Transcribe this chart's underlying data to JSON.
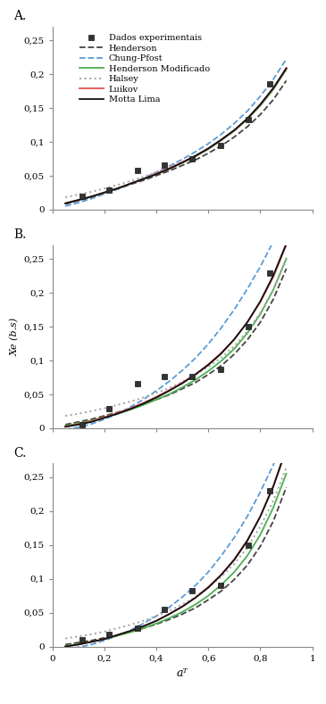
{
  "panels": [
    "A.",
    "B.",
    "C."
  ],
  "ylabel": "Xe (b.s)",
  "xlabel": "aᵀ",
  "ylim": [
    0,
    0.27
  ],
  "xlim": [
    0,
    1.0
  ],
  "yticks": [
    0,
    0.05,
    0.1,
    0.15,
    0.2,
    0.25
  ],
  "xticks": [
    0,
    0.2,
    0.4,
    0.6,
    0.8,
    1.0
  ],
  "exp_data": [
    {
      "x": [
        0.113,
        0.218,
        0.328,
        0.432,
        0.538,
        0.648,
        0.753,
        0.837
      ],
      "y": [
        0.02,
        0.029,
        0.057,
        0.066,
        0.075,
        0.095,
        0.132,
        0.185
      ]
    },
    {
      "x": [
        0.113,
        0.218,
        0.328,
        0.432,
        0.538,
        0.648,
        0.753,
        0.837
      ],
      "y": [
        0.005,
        0.028,
        0.066,
        0.076,
        0.076,
        0.087,
        0.15,
        0.228
      ]
    },
    {
      "x": [
        0.113,
        0.218,
        0.328,
        0.432,
        0.538,
        0.648,
        0.753,
        0.837
      ],
      "y": [
        0.01,
        0.018,
        0.027,
        0.055,
        0.082,
        0.09,
        0.15,
        0.23
      ]
    }
  ],
  "curves": {
    "Henderson": {
      "color": "#444444",
      "linestyle": "--",
      "linewidth": 1.3,
      "data": [
        {
          "x": [
            0.05,
            0.1,
            0.15,
            0.2,
            0.25,
            0.3,
            0.35,
            0.4,
            0.45,
            0.5,
            0.55,
            0.6,
            0.65,
            0.7,
            0.75,
            0.8,
            0.85,
            0.9
          ],
          "y": [
            0.008,
            0.013,
            0.018,
            0.024,
            0.03,
            0.037,
            0.043,
            0.05,
            0.057,
            0.065,
            0.073,
            0.083,
            0.094,
            0.107,
            0.122,
            0.14,
            0.162,
            0.19
          ]
        },
        {
          "x": [
            0.05,
            0.1,
            0.15,
            0.2,
            0.25,
            0.3,
            0.35,
            0.4,
            0.45,
            0.5,
            0.55,
            0.6,
            0.65,
            0.7,
            0.75,
            0.8,
            0.85,
            0.9
          ],
          "y": [
            0.005,
            0.009,
            0.013,
            0.018,
            0.023,
            0.029,
            0.035,
            0.042,
            0.049,
            0.058,
            0.067,
            0.079,
            0.092,
            0.109,
            0.13,
            0.156,
            0.19,
            0.235
          ]
        },
        {
          "x": [
            0.05,
            0.1,
            0.15,
            0.2,
            0.25,
            0.3,
            0.35,
            0.4,
            0.45,
            0.5,
            0.55,
            0.6,
            0.65,
            0.7,
            0.75,
            0.8,
            0.85,
            0.9
          ],
          "y": [
            0.003,
            0.006,
            0.009,
            0.013,
            0.017,
            0.022,
            0.027,
            0.033,
            0.04,
            0.048,
            0.057,
            0.069,
            0.082,
            0.099,
            0.12,
            0.148,
            0.185,
            0.235
          ]
        }
      ]
    },
    "Chung-Pfost": {
      "color": "#5b9bd5",
      "linestyle": "--",
      "linewidth": 1.3,
      "data": [
        {
          "x": [
            0.05,
            0.1,
            0.15,
            0.2,
            0.25,
            0.3,
            0.35,
            0.4,
            0.45,
            0.5,
            0.55,
            0.6,
            0.65,
            0.7,
            0.75,
            0.8,
            0.85,
            0.9
          ],
          "y": [
            0.005,
            0.01,
            0.016,
            0.023,
            0.03,
            0.038,
            0.046,
            0.055,
            0.064,
            0.074,
            0.085,
            0.097,
            0.111,
            0.127,
            0.145,
            0.167,
            0.192,
            0.222
          ]
        },
        {
          "x": [
            0.05,
            0.1,
            0.15,
            0.2,
            0.25,
            0.3,
            0.35,
            0.4,
            0.45,
            0.5,
            0.55,
            0.6,
            0.65,
            0.7,
            0.75,
            0.8,
            0.85,
            0.9
          ],
          "y": [
            -0.002,
            0.001,
            0.006,
            0.013,
            0.021,
            0.031,
            0.042,
            0.055,
            0.069,
            0.085,
            0.103,
            0.124,
            0.148,
            0.175,
            0.205,
            0.238,
            0.275,
            0.315
          ]
        },
        {
          "x": [
            0.05,
            0.1,
            0.15,
            0.2,
            0.25,
            0.3,
            0.35,
            0.4,
            0.45,
            0.5,
            0.55,
            0.6,
            0.65,
            0.7,
            0.75,
            0.8,
            0.85,
            0.9
          ],
          "y": [
            -0.004,
            -0.001,
            0.003,
            0.009,
            0.016,
            0.024,
            0.034,
            0.045,
            0.058,
            0.073,
            0.09,
            0.11,
            0.134,
            0.161,
            0.192,
            0.228,
            0.268,
            0.312
          ]
        }
      ]
    },
    "Henderson Modificado": {
      "color": "#4caf50",
      "linestyle": "-",
      "linewidth": 1.3,
      "data": [
        {
          "x": [
            0.05,
            0.1,
            0.15,
            0.2,
            0.25,
            0.3,
            0.35,
            0.4,
            0.45,
            0.5,
            0.55,
            0.6,
            0.65,
            0.7,
            0.75,
            0.8,
            0.85,
            0.9
          ],
          "y": [
            0.009,
            0.014,
            0.019,
            0.025,
            0.031,
            0.038,
            0.045,
            0.052,
            0.06,
            0.069,
            0.078,
            0.089,
            0.102,
            0.116,
            0.133,
            0.153,
            0.177,
            0.207
          ]
        },
        {
          "x": [
            0.05,
            0.1,
            0.15,
            0.2,
            0.25,
            0.3,
            0.35,
            0.4,
            0.45,
            0.5,
            0.55,
            0.6,
            0.65,
            0.7,
            0.75,
            0.8,
            0.85,
            0.9
          ],
          "y": [
            0.003,
            0.007,
            0.011,
            0.016,
            0.021,
            0.027,
            0.034,
            0.042,
            0.05,
            0.06,
            0.071,
            0.084,
            0.099,
            0.117,
            0.14,
            0.168,
            0.204,
            0.25
          ]
        },
        {
          "x": [
            0.05,
            0.1,
            0.15,
            0.2,
            0.25,
            0.3,
            0.35,
            0.4,
            0.45,
            0.5,
            0.55,
            0.6,
            0.65,
            0.7,
            0.75,
            0.8,
            0.85,
            0.9
          ],
          "y": [
            0.001,
            0.004,
            0.007,
            0.011,
            0.016,
            0.021,
            0.027,
            0.034,
            0.042,
            0.051,
            0.062,
            0.075,
            0.091,
            0.11,
            0.134,
            0.165,
            0.205,
            0.255
          ]
        }
      ]
    },
    "Halsey": {
      "color": "#aaaaaa",
      "linestyle": ":",
      "linewidth": 1.5,
      "data": [
        {
          "x": [
            0.05,
            0.1,
            0.15,
            0.2,
            0.25,
            0.3,
            0.35,
            0.4,
            0.45,
            0.5,
            0.55,
            0.6,
            0.65,
            0.7,
            0.75,
            0.8,
            0.85,
            0.9
          ],
          "y": [
            0.018,
            0.022,
            0.026,
            0.031,
            0.036,
            0.042,
            0.048,
            0.055,
            0.062,
            0.07,
            0.079,
            0.09,
            0.102,
            0.116,
            0.133,
            0.153,
            0.177,
            0.206
          ]
        },
        {
          "x": [
            0.05,
            0.1,
            0.15,
            0.2,
            0.25,
            0.3,
            0.35,
            0.4,
            0.45,
            0.5,
            0.55,
            0.6,
            0.65,
            0.7,
            0.75,
            0.8,
            0.85,
            0.9
          ],
          "y": [
            0.018,
            0.021,
            0.025,
            0.029,
            0.034,
            0.039,
            0.045,
            0.052,
            0.059,
            0.068,
            0.078,
            0.09,
            0.104,
            0.121,
            0.143,
            0.17,
            0.204,
            0.248
          ]
        },
        {
          "x": [
            0.05,
            0.1,
            0.15,
            0.2,
            0.25,
            0.3,
            0.35,
            0.4,
            0.45,
            0.5,
            0.55,
            0.6,
            0.65,
            0.7,
            0.75,
            0.8,
            0.85,
            0.9
          ],
          "y": [
            0.012,
            0.015,
            0.018,
            0.022,
            0.027,
            0.032,
            0.038,
            0.045,
            0.053,
            0.062,
            0.073,
            0.087,
            0.103,
            0.122,
            0.146,
            0.177,
            0.215,
            0.264
          ]
        }
      ]
    },
    "Luikov": {
      "color": "#e05050",
      "linestyle": "-",
      "linewidth": 1.3,
      "data": [
        {
          "x": [
            0.05,
            0.1,
            0.15,
            0.2,
            0.25,
            0.3,
            0.35,
            0.4,
            0.45,
            0.5,
            0.55,
            0.6,
            0.65,
            0.7,
            0.75,
            0.8,
            0.85,
            0.9
          ],
          "y": [
            0.009,
            0.014,
            0.019,
            0.025,
            0.031,
            0.038,
            0.045,
            0.053,
            0.061,
            0.07,
            0.079,
            0.09,
            0.103,
            0.117,
            0.134,
            0.155,
            0.179,
            0.209
          ]
        },
        {
          "x": [
            0.05,
            0.1,
            0.15,
            0.2,
            0.25,
            0.3,
            0.35,
            0.4,
            0.45,
            0.5,
            0.55,
            0.6,
            0.65,
            0.7,
            0.75,
            0.8,
            0.85,
            0.9
          ],
          "y": [
            0.002,
            0.006,
            0.01,
            0.016,
            0.022,
            0.029,
            0.037,
            0.046,
            0.056,
            0.067,
            0.079,
            0.094,
            0.111,
            0.131,
            0.156,
            0.186,
            0.223,
            0.27
          ]
        },
        {
          "x": [
            0.05,
            0.1,
            0.15,
            0.2,
            0.25,
            0.3,
            0.35,
            0.4,
            0.45,
            0.5,
            0.55,
            0.6,
            0.65,
            0.7,
            0.75,
            0.8,
            0.85,
            0.9
          ],
          "y": [
            0.0,
            0.003,
            0.007,
            0.011,
            0.017,
            0.023,
            0.03,
            0.038,
            0.048,
            0.059,
            0.072,
            0.088,
            0.106,
            0.129,
            0.157,
            0.192,
            0.237,
            0.293
          ]
        }
      ]
    },
    "Motta Lima": {
      "color": "#111111",
      "linestyle": "-",
      "linewidth": 1.3,
      "data": [
        {
          "x": [
            0.05,
            0.1,
            0.15,
            0.2,
            0.25,
            0.3,
            0.35,
            0.4,
            0.45,
            0.5,
            0.55,
            0.6,
            0.65,
            0.7,
            0.75,
            0.8,
            0.85,
            0.9
          ],
          "y": [
            0.009,
            0.014,
            0.019,
            0.025,
            0.031,
            0.038,
            0.045,
            0.052,
            0.06,
            0.069,
            0.079,
            0.09,
            0.103,
            0.117,
            0.134,
            0.155,
            0.179,
            0.208
          ]
        },
        {
          "x": [
            0.05,
            0.1,
            0.15,
            0.2,
            0.25,
            0.3,
            0.35,
            0.4,
            0.45,
            0.5,
            0.55,
            0.6,
            0.65,
            0.7,
            0.75,
            0.8,
            0.85,
            0.9
          ],
          "y": [
            0.002,
            0.005,
            0.009,
            0.015,
            0.021,
            0.028,
            0.036,
            0.045,
            0.055,
            0.066,
            0.079,
            0.093,
            0.11,
            0.131,
            0.156,
            0.187,
            0.225,
            0.272
          ]
        },
        {
          "x": [
            0.05,
            0.1,
            0.15,
            0.2,
            0.25,
            0.3,
            0.35,
            0.4,
            0.45,
            0.5,
            0.55,
            0.6,
            0.65,
            0.7,
            0.75,
            0.8,
            0.85,
            0.9
          ],
          "y": [
            0.0,
            0.003,
            0.007,
            0.011,
            0.017,
            0.023,
            0.03,
            0.038,
            0.048,
            0.059,
            0.072,
            0.087,
            0.106,
            0.128,
            0.156,
            0.192,
            0.236,
            0.291
          ]
        }
      ]
    }
  },
  "legend_labels": [
    "Dados experimentais",
    "Henderson",
    "Chung-Pfost",
    "Henderson Modificado",
    "Halsey",
    "Luikov",
    "Motta Lima"
  ],
  "bg_color": "#ffffff",
  "font_family": "serif"
}
